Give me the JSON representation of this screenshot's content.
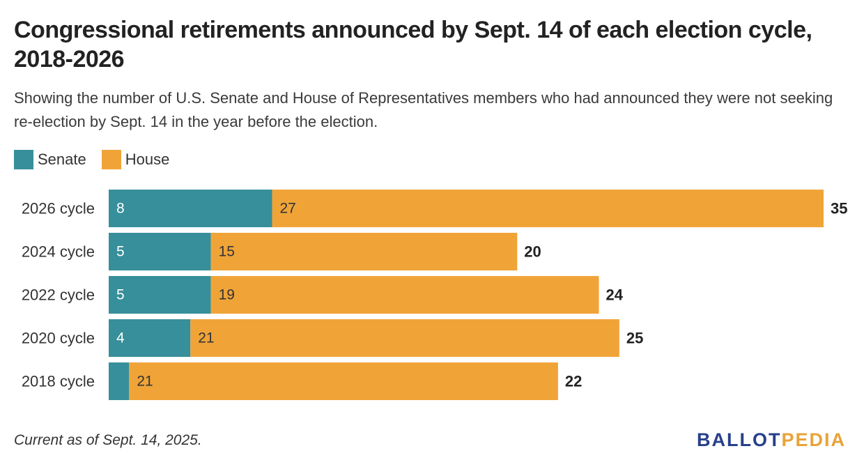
{
  "title": "Congressional retirements announced by Sept. 14 of each election cycle, 2018-2026",
  "subtitle": "Showing the number of U.S. Senate and House of Representatives members who had announced they were not seeking re-election by Sept. 14 in the year before the election.",
  "note": "Current as of Sept. 14, 2025.",
  "logo": {
    "part1": "BALLOT",
    "part2": "PEDIA"
  },
  "colors": {
    "senate": "#368f9a",
    "house": "#f0a438",
    "logo_dark": "#27408b",
    "logo_accent": "#e8a33a"
  },
  "chart_data": {
    "type": "bar",
    "orientation": "horizontal",
    "stacked": true,
    "categories": [
      "2026 cycle",
      "2024 cycle",
      "2022 cycle",
      "2020 cycle",
      "2018 cycle"
    ],
    "series": [
      {
        "name": "Senate",
        "values": [
          8,
          5,
          5,
          4,
          1
        ],
        "labels": [
          "8",
          "5",
          "5",
          "4",
          ""
        ]
      },
      {
        "name": "House",
        "values": [
          27,
          15,
          19,
          21,
          21
        ],
        "labels": [
          "27",
          "15",
          "19",
          "21",
          "21"
        ]
      }
    ],
    "totals": [
      "35",
      "20",
      "24",
      "25",
      "22"
    ],
    "xlim": [
      0,
      35
    ],
    "legend_position": "top-left",
    "grid": false
  }
}
